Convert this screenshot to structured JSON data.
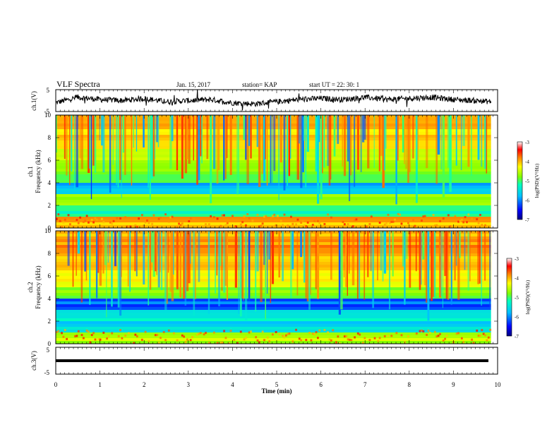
{
  "header": {
    "title": "VLF Spectra",
    "date": "Jan. 15, 2017",
    "station": "station= KAP",
    "start": "start UT =  22: 30: 1"
  },
  "chart_data": [
    {
      "type": "line",
      "panel": "ch1-waveform",
      "ylabel": "ch.1(V)",
      "ylim": [
        -5,
        5
      ],
      "yticks": [
        "5",
        "-5"
      ],
      "xlim": [
        0,
        10
      ],
      "data_end_min": 9.85,
      "x": [
        0.0,
        0.5,
        1.0,
        1.5,
        2.0,
        2.5,
        3.0,
        3.5,
        4.0,
        4.5,
        5.0,
        5.5,
        6.0,
        6.5,
        7.0,
        7.5,
        8.0,
        8.5,
        9.0,
        9.5,
        9.85
      ],
      "values": [
        -1.0,
        1.5,
        0.5,
        0.0,
        1.0,
        -0.5,
        0.0,
        0.5,
        -1.0,
        -1.5,
        -0.5,
        0.5,
        1.0,
        0.5,
        1.5,
        0.5,
        1.0,
        1.5,
        0.5,
        0.0,
        -0.5
      ],
      "color": "#000000"
    },
    {
      "type": "heatmap",
      "panel": "ch1-spectrogram",
      "ylabel": "ch.1",
      "ylabel2": "Frequency (kHz)",
      "ylim": [
        0,
        10
      ],
      "yticks": [
        "0",
        "2",
        "4",
        "6",
        "8",
        "10"
      ],
      "xlim": [
        0,
        10
      ],
      "data_end_min": 9.85,
      "freq_band_kHz": [
        0,
        1,
        2,
        3,
        4,
        5,
        6,
        7,
        8,
        9
      ],
      "log_psd": [
        -4.2,
        -5.5,
        -4.8,
        -6.0,
        -5.2,
        -5.0,
        -4.6,
        -4.4,
        -4.3,
        -4.2
      ],
      "colorbar": {
        "label": "log(PSD)(V²/Hz)",
        "ticks": [
          "-3",
          "-4",
          "-5",
          "-6",
          "-7"
        ],
        "range": [
          -7,
          -3
        ]
      }
    },
    {
      "type": "heatmap",
      "panel": "ch2-spectrogram",
      "ylabel": "ch.2",
      "ylabel2": "Frequency (kHz)",
      "ylim": [
        0,
        10
      ],
      "yticks": [
        "0",
        "2",
        "4",
        "6",
        "8",
        "10"
      ],
      "xlim": [
        0,
        10
      ],
      "data_end_min": 9.85,
      "freq_band_kHz": [
        0,
        1,
        2,
        3,
        4,
        5,
        6,
        7,
        8,
        9
      ],
      "log_psd": [
        -4.8,
        -5.8,
        -5.6,
        -6.2,
        -5.0,
        -4.6,
        -4.4,
        -4.2,
        -4.1,
        -4.2
      ],
      "colorbar": {
        "label": "log(PSD)(V²/Hz)",
        "ticks": [
          "-3",
          "-4",
          "-5",
          "-6",
          "-7"
        ],
        "range": [
          -7,
          -3
        ]
      }
    },
    {
      "type": "line",
      "panel": "ch3-waveform",
      "ylabel": "ch.3(V)",
      "ylim": [
        -5,
        5
      ],
      "yticks": [
        "5",
        "-5"
      ],
      "xlim": [
        0,
        10
      ],
      "data_end_min": 9.85,
      "x": [
        0,
        9.85
      ],
      "values": [
        0,
        0
      ],
      "color": "#000000"
    }
  ],
  "xaxis": {
    "label": "Time (min)",
    "ticks": [
      "0",
      "1",
      "2",
      "3",
      "4",
      "5",
      "6",
      "7",
      "8",
      "9",
      "10"
    ]
  },
  "colors": {
    "colormap": [
      "#00007f",
      "#0000ff",
      "#00bfff",
      "#00ffbf",
      "#7fff00",
      "#ffff00",
      "#ff7f00",
      "#ff0000",
      "#ffffff"
    ]
  }
}
